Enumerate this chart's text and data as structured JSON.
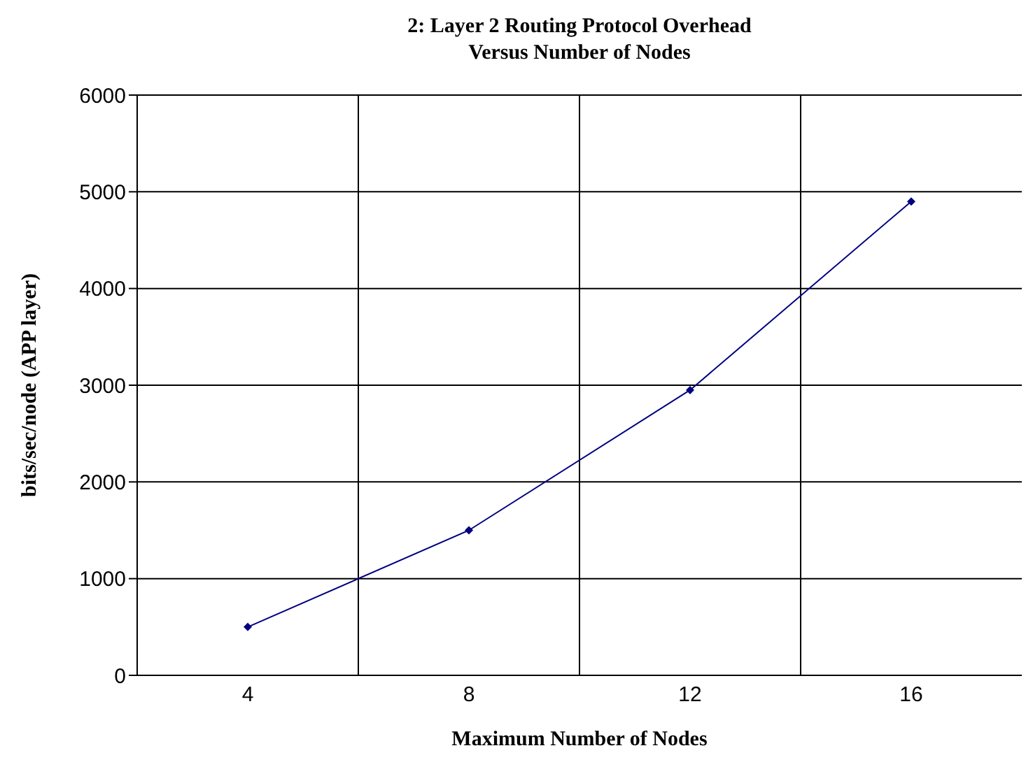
{
  "chart_data": {
    "type": "line",
    "title": "2: Layer 2 Routing Protocol Overhead\nVersus Number of Nodes",
    "xlabel": "Maximum Number of Nodes",
    "ylabel": "bits/sec/node (APP layer)",
    "categories": [
      "4",
      "8",
      "12",
      "16"
    ],
    "series": [
      {
        "color": "#000080",
        "values": [
          500,
          1500,
          2950,
          4900
        ]
      }
    ],
    "ylim": [
      0,
      6000
    ],
    "yticks": [
      0,
      1000,
      2000,
      3000,
      4000,
      5000,
      6000
    ],
    "grid": true,
    "legend": false,
    "marker": "diamond",
    "line_style": "solid"
  }
}
